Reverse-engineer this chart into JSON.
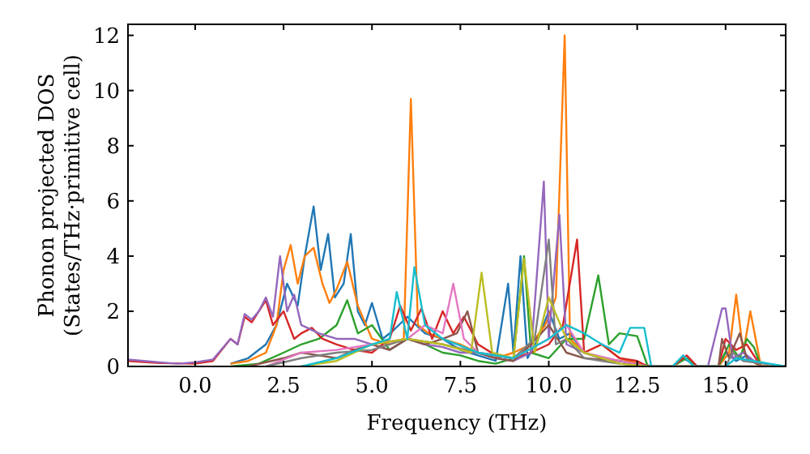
{
  "chart_data": {
    "type": "line",
    "xlabel": "Frequency (THz)",
    "ylabel": "Phonon projected DOS\n(States/THz·primitive cell)",
    "xlim": [
      -1.9,
      16.7
    ],
    "ylim": [
      0,
      12.4
    ],
    "xticks": [
      {
        "value": 0,
        "label": "0.0"
      },
      {
        "value": 2.5,
        "label": "2.5"
      },
      {
        "value": 5,
        "label": "5.0"
      },
      {
        "value": 7.5,
        "label": "7.5"
      },
      {
        "value": 10,
        "label": "10.0"
      },
      {
        "value": 12.5,
        "label": "12.5"
      },
      {
        "value": 15,
        "label": "15.0"
      }
    ],
    "yticks": [
      0,
      2,
      4,
      6,
      8,
      10,
      12
    ],
    "grid": false,
    "marker": "none",
    "line_style": "solid",
    "series": [
      {
        "color": "#1f77b4",
        "x": [
          1,
          1.5,
          2,
          2.3,
          2.6,
          2.9,
          3.1,
          3.35,
          3.55,
          3.76,
          3.95,
          4.2,
          4.4,
          4.6,
          4.8,
          5.0,
          5.3,
          5.6,
          6.0,
          6.5,
          7.0,
          7.5,
          8.0,
          8.5,
          8.85,
          9.0,
          9.2,
          9.4,
          9.7,
          10.0,
          10.3,
          10.6,
          11.0,
          11.5,
          12.0,
          12.5,
          13.0,
          13.5,
          13.8,
          14.2,
          14.8,
          15.0,
          15.3,
          15.6,
          16.0,
          16.7
        ],
        "values": [
          0.1,
          0.3,
          0.8,
          1.5,
          3.0,
          2.2,
          4.0,
          5.8,
          3.5,
          4.8,
          2.5,
          3.0,
          4.8,
          2.0,
          1.5,
          2.3,
          1.0,
          1.3,
          1.8,
          1.2,
          1.0,
          0.6,
          0.4,
          0.2,
          3.0,
          0.5,
          4.0,
          0.3,
          1.0,
          2.0,
          1.0,
          1.2,
          0.5,
          0.3,
          0.2,
          0.1,
          0,
          0,
          0.3,
          0,
          0,
          0.5,
          0.2,
          0.4,
          0,
          0
        ]
      },
      {
        "color": "#ff7f0e",
        "x": [
          1,
          1.5,
          2,
          2.3,
          2.5,
          2.7,
          2.9,
          3.1,
          3.35,
          3.6,
          3.8,
          4.0,
          4.3,
          4.6,
          5.0,
          5.5,
          5.9,
          6.1,
          6.3,
          6.6,
          7.0,
          7.5,
          8.0,
          8.5,
          9.0,
          9.5,
          9.9,
          10.2,
          10.45,
          10.6,
          11.0,
          11.5,
          12.0,
          12.8,
          13.5,
          14.2,
          14.8,
          15.1,
          15.3,
          15.5,
          15.7,
          16.0,
          16.7
        ],
        "values": [
          0.1,
          0.2,
          0.5,
          1.5,
          3.5,
          4.4,
          3.0,
          4.0,
          4.3,
          3.0,
          2.3,
          2.8,
          3.8,
          2.2,
          1.0,
          0.8,
          1.0,
          9.7,
          1.5,
          1.2,
          1.0,
          0.8,
          0.5,
          0.3,
          0.5,
          0.8,
          1.5,
          2.5,
          12.0,
          1.0,
          0.5,
          0.8,
          0.3,
          0,
          0,
          0,
          0,
          0.5,
          2.6,
          0.5,
          2.0,
          0,
          0
        ]
      },
      {
        "color": "#2ca02c",
        "x": [
          1.0,
          1.8,
          2.5,
          3.0,
          3.5,
          4.0,
          4.3,
          4.6,
          5.0,
          5.5,
          6.0,
          6.5,
          7.0,
          7.5,
          8.0,
          8.5,
          9.0,
          9.3,
          9.5,
          10.0,
          10.5,
          11.0,
          11.4,
          11.7,
          12.0,
          12.5,
          12.8,
          13.5,
          13.9,
          14.2,
          14.8,
          15.1,
          15.4,
          15.6,
          15.8,
          16.0,
          16.7
        ],
        "values": [
          0,
          0.1,
          0.5,
          0.8,
          1.0,
          1.5,
          2.4,
          1.2,
          1.5,
          0.6,
          1.0,
          0.8,
          0.5,
          0.4,
          0.2,
          0.1,
          0.3,
          4.0,
          0.5,
          0.3,
          1.0,
          1.0,
          3.3,
          0.8,
          1.2,
          1.1,
          0,
          0,
          0.3,
          0,
          0,
          0.8,
          0.3,
          1.0,
          0.7,
          0,
          0
        ]
      },
      {
        "color": "#d62728",
        "x": [
          -1.9,
          -1,
          0,
          0.5,
          1.0,
          1.2,
          1.4,
          1.6,
          1.8,
          2.0,
          2.2,
          2.5,
          2.8,
          3.0,
          3.3,
          3.6,
          4.0,
          4.5,
          5.0,
          5.5,
          5.8,
          6.1,
          6.4,
          6.7,
          7.0,
          7.3,
          7.6,
          8.0,
          8.5,
          9.0,
          9.5,
          10.0,
          10.4,
          10.8,
          11.0,
          11.5,
          12.0,
          12.5,
          12.8,
          13.5,
          13.9,
          14.2,
          14.8,
          15.0,
          15.3,
          15.6,
          16.0,
          16.7
        ],
        "values": [
          0.2,
          0.12,
          0.1,
          0.2,
          1.0,
          0.8,
          1.8,
          1.6,
          2.0,
          2.4,
          1.5,
          2.0,
          1.0,
          1.2,
          1.4,
          1.0,
          0.8,
          0.6,
          0.5,
          1.0,
          2.2,
          1.3,
          2.1,
          1.0,
          2.0,
          1.2,
          1.8,
          0.8,
          0.4,
          0.3,
          0.5,
          0.8,
          1.5,
          4.6,
          0.5,
          0.8,
          0.3,
          0.2,
          0,
          0,
          0.4,
          0,
          0,
          1.0,
          0.6,
          0.8,
          0,
          0
        ]
      },
      {
        "color": "#9467bd",
        "x": [
          -1.9,
          -1,
          -0.5,
          0,
          0.5,
          1.0,
          1.2,
          1.4,
          1.6,
          1.8,
          2.0,
          2.2,
          2.4,
          2.6,
          2.8,
          3.0,
          3.5,
          4.0,
          4.5,
          5.0,
          5.5,
          6.0,
          6.5,
          7.0,
          7.5,
          8.0,
          8.5,
          9.0,
          9.5,
          9.86,
          10.0,
          10.3,
          10.5,
          11.0,
          11.5,
          12.0,
          12.8,
          13.5,
          14.5,
          14.9,
          15.0,
          15.2,
          15.5,
          16.0,
          16.7
        ],
        "values": [
          0.25,
          0.15,
          0.1,
          0.15,
          0.25,
          1.0,
          0.8,
          1.9,
          1.7,
          2.0,
          2.5,
          1.8,
          4.0,
          2.0,
          2.6,
          1.5,
          1.2,
          1.0,
          1.0,
          0.8,
          0.6,
          1.0,
          0.8,
          0.7,
          0.5,
          0.5,
          0.3,
          0.2,
          0.5,
          6.7,
          1.0,
          5.5,
          0.8,
          0.5,
          0.3,
          0.2,
          0,
          0,
          0,
          2.1,
          2.1,
          0.3,
          0.5,
          0,
          0
        ]
      },
      {
        "color": "#8c564b",
        "x": [
          1.5,
          2.5,
          3.0,
          3.5,
          4.0,
          4.5,
          5.0,
          5.5,
          6.0,
          6.5,
          7.0,
          7.4,
          7.7,
          8.0,
          8.5,
          9.0,
          9.5,
          10.0,
          10.5,
          11.0,
          12.0,
          12.8,
          14.8,
          14.9,
          15.1,
          15.4,
          15.6,
          16.0,
          16.7
        ],
        "values": [
          0,
          0.3,
          0.5,
          0.4,
          0.3,
          0.6,
          0.8,
          0.6,
          1.0,
          0.8,
          1.0,
          1.2,
          2.0,
          0.5,
          0.3,
          0.2,
          0.8,
          1.5,
          0.5,
          0.3,
          0.2,
          0,
          0,
          1.0,
          0.3,
          1.2,
          0.3,
          0,
          0
        ]
      },
      {
        "color": "#e377c2",
        "x": [
          2.0,
          3.0,
          4.0,
          5.0,
          6.0,
          6.5,
          7.0,
          7.3,
          7.6,
          8.0,
          9.0,
          10.0,
          10.5,
          11.0,
          12.0,
          12.8,
          16.7
        ],
        "values": [
          0,
          0.5,
          0.6,
          0.8,
          1.0,
          1.5,
          1.2,
          3.0,
          1.0,
          0.5,
          0.3,
          1.0,
          1.5,
          0.5,
          0.2,
          0,
          0
        ]
      },
      {
        "color": "#7f7f7f",
        "x": [
          2.0,
          3.0,
          4.0,
          5.0,
          6.0,
          7.0,
          8.0,
          9.0,
          9.6,
          10.0,
          10.2,
          10.5,
          11.0,
          12.0,
          12.8,
          15.0,
          15.2,
          15.5,
          16.7
        ],
        "values": [
          0,
          0.3,
          0.5,
          0.6,
          1.0,
          0.8,
          0.5,
          0.3,
          1.0,
          4.6,
          0.8,
          1.0,
          0.3,
          0.1,
          0,
          0,
          0.5,
          0.2,
          0
        ]
      },
      {
        "color": "#bcbd22",
        "x": [
          3.0,
          4.0,
          5.0,
          6.0,
          7.0,
          7.8,
          8.1,
          8.4,
          9.0,
          9.3,
          9.6,
          10.0,
          10.5,
          11.0,
          12.0,
          12.8,
          16.7
        ],
        "values": [
          0,
          0.2,
          0.8,
          1.0,
          0.8,
          0.5,
          3.4,
          0.5,
          0.3,
          3.9,
          0.5,
          2.5,
          1.0,
          0.5,
          0.1,
          0,
          0
        ]
      },
      {
        "color": "#17becf",
        "x": [
          3.0,
          4.0,
          5.0,
          5.5,
          5.7,
          6.0,
          6.2,
          6.5,
          7.0,
          8.0,
          9.0,
          10.0,
          10.5,
          11.0,
          11.5,
          12.0,
          12.3,
          12.7,
          12.9,
          13.5,
          13.8,
          14.1,
          15.0,
          15.3,
          16.7
        ],
        "values": [
          0,
          0.3,
          0.8,
          1.0,
          2.7,
          1.0,
          3.6,
          1.5,
          1.0,
          0.5,
          0.3,
          1.0,
          1.5,
          1.2,
          0.8,
          0.5,
          1.4,
          1.4,
          0,
          0,
          0.4,
          0,
          0,
          0.3,
          0
        ]
      }
    ]
  }
}
